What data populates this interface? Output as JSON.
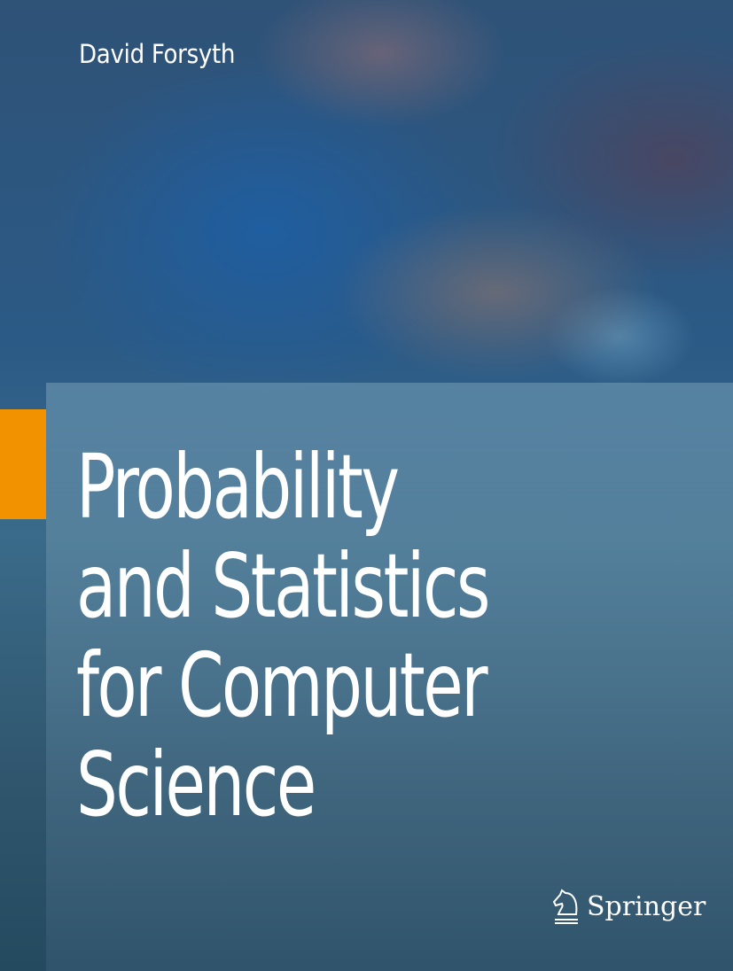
{
  "author": "David Forsyth",
  "title_lines": [
    "Probability",
    "and Statistics",
    "for Computer",
    "Science"
  ],
  "publisher": {
    "name": "Springer",
    "logo_icon": "knight-chess-piece-icon"
  },
  "colors": {
    "accent": "#f39200",
    "text": "#ffffff"
  }
}
